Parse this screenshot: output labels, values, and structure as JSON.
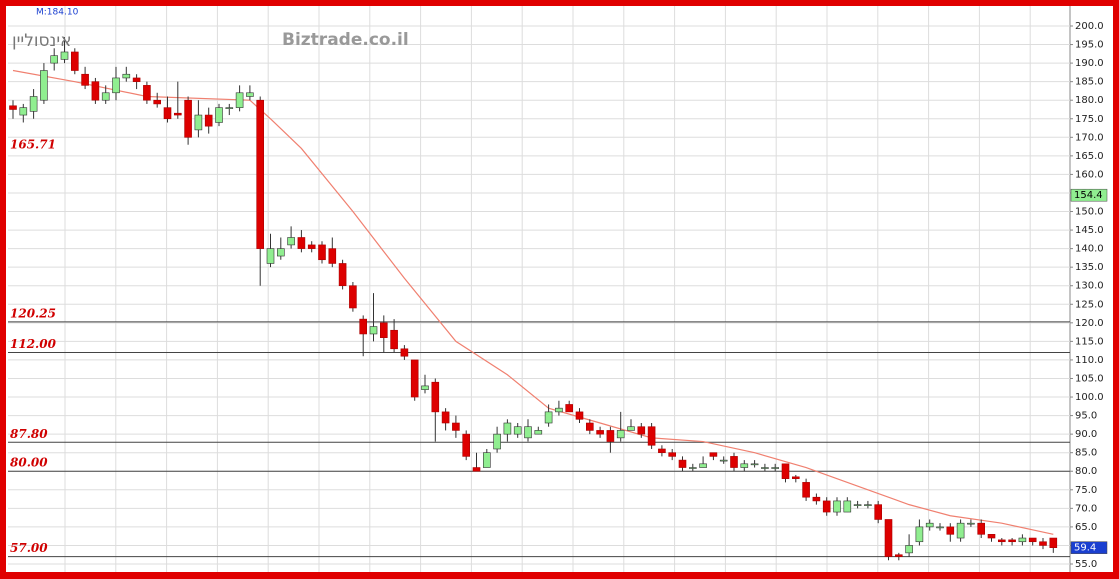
{
  "chart_data": {
    "type": "candlestick",
    "title": "אינסוליין",
    "watermark": "Biztrade.co.il",
    "indicator": "M:184.10",
    "up_color": "#90ee90",
    "down_color": "#dd0000",
    "ma_color": "#f08070",
    "open": [
      178.5,
      176,
      177,
      180,
      190,
      191,
      193,
      187,
      185,
      180,
      182,
      186,
      186,
      184,
      180,
      178,
      176.5,
      180,
      172,
      176,
      174,
      178,
      178,
      181,
      180,
      136,
      138,
      141,
      143,
      141,
      141,
      140,
      136,
      130,
      121,
      117,
      120,
      118,
      113,
      110,
      102,
      104,
      96,
      93,
      90,
      81,
      81,
      86,
      90,
      90,
      89,
      90,
      93,
      96,
      98,
      96,
      93,
      91,
      91,
      89,
      91,
      92,
      92,
      86,
      85,
      83,
      81,
      81,
      85,
      83,
      84,
      81,
      82,
      81,
      81,
      82,
      78.5,
      77,
      73,
      72,
      69,
      69,
      71,
      71,
      71,
      67,
      57.5,
      58,
      61,
      65,
      65,
      65,
      62,
      66,
      66,
      63,
      61.5,
      61.5,
      61,
      62,
      61,
      62
    ],
    "high": [
      180,
      179,
      183,
      190,
      194,
      197,
      194,
      189,
      186,
      184,
      189,
      189,
      187,
      185,
      182,
      181,
      185,
      181,
      180,
      178,
      179,
      179,
      184,
      184,
      181,
      144,
      143,
      146,
      145,
      142,
      142,
      143,
      137,
      131,
      122,
      128,
      122,
      121,
      114,
      110,
      106,
      105,
      97,
      95,
      91,
      85,
      86,
      92,
      94,
      93,
      94,
      92,
      98,
      99,
      99,
      97,
      94,
      92,
      92,
      96,
      94,
      93,
      93,
      87,
      86,
      84,
      82,
      84,
      85,
      84,
      85,
      83,
      83,
      82,
      82,
      82,
      79,
      78,
      74,
      73,
      73,
      73,
      72,
      72,
      72,
      67,
      58,
      63,
      67,
      67,
      66,
      66,
      67,
      67,
      67,
      63,
      62,
      62,
      63,
      62,
      62,
      62
    ],
    "low": [
      175,
      174,
      175,
      179,
      188,
      190,
      187,
      183,
      179,
      179,
      180,
      185,
      183,
      179,
      178,
      174,
      175,
      168,
      170,
      171,
      173,
      176,
      177,
      180,
      130,
      135,
      137,
      140,
      139,
      139,
      136,
      135,
      129,
      123,
      111,
      115,
      112,
      112,
      110,
      99,
      101,
      88,
      91,
      89,
      83,
      80,
      81,
      85,
      88,
      89,
      88,
      90,
      92,
      95,
      96,
      93,
      90,
      89,
      85,
      88,
      91,
      89,
      86,
      84,
      83,
      80,
      80,
      81,
      83,
      82,
      80,
      80,
      81,
      80,
      80,
      77,
      77,
      72,
      71,
      68,
      68,
      69,
      70,
      70,
      66,
      56,
      56,
      57,
      60,
      64,
      64,
      61,
      61,
      65,
      62,
      61,
      60,
      60,
      60,
      60,
      59,
      58
    ],
    "close": [
      177.5,
      178,
      181,
      188,
      192,
      193,
      188,
      184,
      180,
      182,
      186,
      187,
      185,
      180,
      179,
      175,
      176,
      170,
      176,
      173,
      178,
      178,
      182,
      182,
      140,
      140,
      140,
      143,
      140,
      140,
      137,
      136,
      130,
      124,
      117,
      119,
      116,
      113,
      111,
      100,
      103,
      96,
      93,
      91,
      84,
      80,
      85,
      90,
      93,
      92,
      92,
      91,
      96,
      97,
      96,
      94,
      91,
      90,
      88,
      91,
      92,
      90,
      87,
      85,
      84,
      81,
      81,
      82,
      84,
      83,
      81,
      82,
      82,
      81,
      81,
      78,
      78,
      73,
      72,
      69,
      72,
      72,
      71,
      71,
      67,
      57,
      57,
      60,
      65,
      66,
      65,
      63,
      66,
      66,
      63,
      62,
      61,
      61,
      62,
      61,
      60,
      59.4
    ],
    "ma": {
      "x": [
        0,
        6,
        13,
        23,
        25,
        28,
        33,
        38,
        43,
        48,
        52,
        57,
        62,
        67,
        72,
        77,
        83,
        87,
        91,
        96,
        101
      ],
      "values": [
        188,
        185,
        181,
        180,
        175,
        167,
        150,
        132,
        115,
        106,
        97,
        93,
        89,
        88,
        85,
        81,
        75,
        71,
        68,
        66,
        63
      ]
    },
    "levels": [
      {
        "value": 165.71,
        "line": false
      },
      {
        "value": 120.25,
        "line": true
      },
      {
        "value": {
          "value": 112,
          "label": "112.00"
        },
        "line": true
      },
      {
        "value": {
          "value": 87.8,
          "label": "87.80"
        },
        "line": true
      },
      {
        "value": {
          "value": 80,
          "label": "80.00"
        },
        "line": true
      },
      {
        "value": {
          "value": 57,
          "label": "57.00"
        },
        "line": true
      }
    ],
    "price_markers": [
      {
        "value": 154.4,
        "color": "#90ee90",
        "text_color": "#000"
      },
      {
        "value": 59.4,
        "color": "#1a3fd0",
        "text_color": "#fff"
      }
    ],
    "ylim": [
      55,
      200
    ],
    "yticks": [
      {
        "value": 200,
        "label": "200.0"
      },
      {
        "value": 195,
        "label": "195.0"
      },
      {
        "value": 190,
        "label": "190.0"
      },
      {
        "value": 185,
        "label": "185.0"
      },
      {
        "value": 180,
        "label": "180.0"
      },
      {
        "value": 175,
        "label": "175.0"
      },
      {
        "value": 170,
        "label": "170.0"
      },
      {
        "value": 165,
        "label": "165.0"
      },
      {
        "value": 160,
        "label": "160.0"
      },
      {
        "value": 155,
        "label": "155.0"
      },
      {
        "value": 150,
        "label": "150.0"
      },
      {
        "value": 145,
        "label": "145.0"
      },
      {
        "value": 140,
        "label": "140.0"
      },
      {
        "value": 135,
        "label": "135.0"
      },
      {
        "value": 130,
        "label": "130.0"
      },
      {
        "value": 125,
        "label": "125.0"
      },
      {
        "value": 120,
        "label": "120.0"
      },
      {
        "value": 115,
        "label": "115.0"
      },
      {
        "value": 110,
        "label": "110.0"
      },
      {
        "value": 105,
        "label": "105.0"
      },
      {
        "value": 100,
        "label": "100.0"
      },
      {
        "value": 95,
        "label": "95.0"
      },
      {
        "value": 90,
        "label": "90.0"
      },
      {
        "value": 85,
        "label": "85.0"
      },
      {
        "value": 80,
        "label": "80.0"
      },
      {
        "value": 75,
        "label": "75.0"
      },
      {
        "value": 70,
        "label": "70.0"
      },
      {
        "value": 65,
        "label": "65.0"
      },
      {
        "value": 60,
        "label": "60.0"
      },
      {
        "value": 55,
        "label": "55.0"
      }
    ],
    "grid": true
  }
}
